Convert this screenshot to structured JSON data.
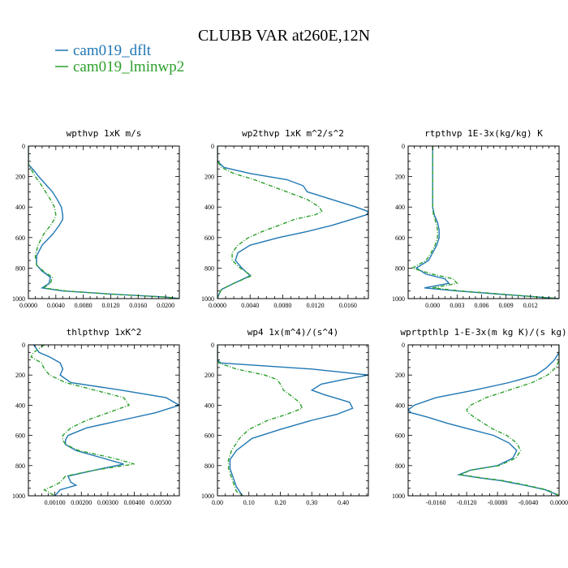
{
  "title": "CLUBB VAR at260E,12N",
  "colors": {
    "dflt": "#1f77b4",
    "lminwp2": "#2ca02c"
  },
  "legend": [
    {
      "label": "cam019_dflt",
      "color": "#1f77b4",
      "style": "solid"
    },
    {
      "label": "cam019_lminwp2",
      "color": "#2ca02c",
      "style": "dashed"
    }
  ],
  "chart_data": [
    {
      "type": "line",
      "title": "wpthvp   1xK m/s",
      "xlim": [
        0,
        0.022
      ],
      "ylim": [
        1000,
        0
      ],
      "xticks": [
        "0.0000",
        "0.0040",
        "0.0080",
        "0.0120",
        "0.0160",
        "0.0200"
      ],
      "xtick_values": [
        0,
        0.004,
        0.008,
        0.012,
        0.016,
        0.02
      ],
      "yticks": [
        "0",
        "200",
        "400",
        "600",
        "800",
        "1000"
      ],
      "ytick_values": [
        0,
        200,
        400,
        600,
        800,
        1000
      ],
      "series": [
        {
          "name": "cam019_dflt",
          "y": [
            0,
            120,
            160,
            200,
            250,
            300,
            350,
            400,
            450,
            480,
            520,
            580,
            650,
            720,
            780,
            820,
            860,
            900,
            930,
            950,
            970,
            990,
            1000
          ],
          "x": [
            0,
            0,
            0.0008,
            0.0015,
            0.0025,
            0.0035,
            0.0042,
            0.0048,
            0.005,
            0.005,
            0.0045,
            0.0035,
            0.002,
            0.0012,
            0.0012,
            0.002,
            0.0032,
            0.003,
            0.002,
            0.005,
            0.012,
            0.02,
            0.022
          ]
        },
        {
          "name": "cam019_lminwp2",
          "y": [
            0,
            120,
            160,
            200,
            250,
            300,
            350,
            400,
            450,
            480,
            520,
            580,
            650,
            720,
            780,
            820,
            860,
            900,
            930,
            950,
            970,
            990,
            1000
          ],
          "x": [
            0,
            0,
            0.0005,
            0.001,
            0.0018,
            0.0025,
            0.0032,
            0.0038,
            0.004,
            0.0038,
            0.0032,
            0.0022,
            0.0014,
            0.001,
            0.0012,
            0.0022,
            0.0035,
            0.0032,
            0.0022,
            0.0055,
            0.012,
            0.02,
            0.022
          ]
        }
      ]
    },
    {
      "type": "line",
      "title": "wp2thvp   1xK m^2/s^2",
      "xlim": [
        0,
        0.0185
      ],
      "ylim": [
        1000,
        0
      ],
      "xticks": [
        "0.0000",
        "0.0040",
        "0.0080",
        "0.0120",
        "0.0160"
      ],
      "xtick_values": [
        0,
        0.004,
        0.008,
        0.012,
        0.016
      ],
      "yticks": [
        "0",
        "200",
        "400",
        "600",
        "800",
        "1000"
      ],
      "ytick_values": [
        0,
        200,
        400,
        600,
        800,
        1000
      ],
      "series": [
        {
          "name": "cam019_dflt",
          "y": [
            0,
            100,
            140,
            180,
            220,
            260,
            300,
            350,
            400,
            430,
            450,
            480,
            520,
            560,
            600,
            650,
            700,
            750,
            800,
            850,
            900,
            940,
            970,
            1000
          ],
          "x": [
            0,
            0,
            0.0008,
            0.004,
            0.0085,
            0.0105,
            0.011,
            0.014,
            0.017,
            0.0185,
            0.0183,
            0.0165,
            0.014,
            0.011,
            0.0075,
            0.004,
            0.0025,
            0.0022,
            0.003,
            0.004,
            0.002,
            0.0005,
            0.0002,
            0
          ]
        },
        {
          "name": "cam019_lminwp2",
          "y": [
            0,
            100,
            140,
            180,
            220,
            260,
            300,
            350,
            400,
            430,
            450,
            480,
            520,
            560,
            600,
            650,
            700,
            750,
            800,
            850,
            900,
            940,
            970,
            1000
          ],
          "x": [
            0,
            0,
            0.0005,
            0.002,
            0.0045,
            0.0065,
            0.0085,
            0.011,
            0.0125,
            0.0128,
            0.012,
            0.0095,
            0.0075,
            0.0055,
            0.0038,
            0.0025,
            0.0018,
            0.0018,
            0.0028,
            0.0042,
            0.002,
            0.0005,
            0.0002,
            0
          ]
        }
      ]
    },
    {
      "type": "line",
      "title": "rtpthvp   1E-3x(kg/kg) K",
      "xlim": [
        -0.003,
        0.0155
      ],
      "ylim": [
        1000,
        0
      ],
      "xticks": [
        "0.000",
        "0.003",
        "0.006",
        "0.009",
        "0.012"
      ],
      "xtick_values": [
        0,
        0.003,
        0.006,
        0.009,
        0.012
      ],
      "yticks": [
        "0",
        "200",
        "400",
        "600",
        "800",
        "1000"
      ],
      "ytick_values": [
        0,
        200,
        400,
        600,
        800,
        1000
      ],
      "series": [
        {
          "name": "cam019_dflt",
          "y": [
            0,
            100,
            200,
            300,
            400,
            450,
            500,
            550,
            600,
            650,
            700,
            750,
            800,
            840,
            870,
            900,
            930,
            950,
            970,
            990,
            1000
          ],
          "x": [
            0,
            0,
            0,
            0,
            0,
            0.0002,
            0.0006,
            0.0008,
            0.0008,
            0.0005,
            0,
            -0.0005,
            -0.002,
            -0.0008,
            0.0015,
            0.002,
            -0.001,
            0.003,
            0.008,
            0.013,
            0.0155
          ]
        },
        {
          "name": "cam019_lminwp2",
          "y": [
            0,
            100,
            200,
            300,
            400,
            450,
            500,
            550,
            600,
            650,
            700,
            750,
            800,
            840,
            870,
            900,
            930,
            950,
            970,
            990,
            1000
          ],
          "x": [
            0,
            0,
            0,
            0,
            0,
            0.0001,
            0.0004,
            0.0006,
            0.0006,
            0.0003,
            -0.0002,
            -0.0008,
            -0.0025,
            0,
            0.0025,
            0.003,
            0,
            0.0035,
            0.0085,
            0.013,
            0.0155
          ]
        }
      ]
    },
    {
      "type": "line",
      "title": "thlpthvp   1xK^2",
      "xlim": [
        0,
        0.0057
      ],
      "ylim": [
        1000,
        0
      ],
      "xticks": [
        "0.00100",
        "0.00200",
        "0.00300",
        "0.00400",
        "0.00500"
      ],
      "xtick_values": [
        0.001,
        0.002,
        0.003,
        0.004,
        0.005
      ],
      "yticks": [
        "0",
        "200",
        "400",
        "600",
        "800",
        "1000"
      ],
      "ytick_values": [
        0,
        200,
        400,
        600,
        800,
        1000
      ],
      "series": [
        {
          "name": "cam019_dflt",
          "y": [
            0,
            50,
            80,
            120,
            160,
            200,
            250,
            300,
            350,
            400,
            450,
            500,
            550,
            600,
            630,
            660,
            700,
            750,
            790,
            830,
            870,
            910,
            930,
            960,
            1000
          ],
          "x": [
            0.0002,
            0.0004,
            0.0008,
            0.0012,
            0.0013,
            0.0012,
            0.0016,
            0.0035,
            0.0052,
            0.0057,
            0.0048,
            0.0035,
            0.0022,
            0.0015,
            0.0014,
            0.0014,
            0.0018,
            0.0028,
            0.0036,
            0.0025,
            0.0015,
            0.0016,
            0.0018,
            0.0012,
            0.001
          ]
        },
        {
          "name": "cam019_lminwp2",
          "y": [
            0,
            50,
            80,
            120,
            160,
            200,
            250,
            300,
            350,
            400,
            450,
            500,
            550,
            600,
            630,
            660,
            700,
            750,
            790,
            830,
            870,
            910,
            930,
            960,
            1000
          ],
          "x": [
            0.0006,
            0.0002,
            0.0001,
            0.0005,
            0.0006,
            0.0008,
            0.0014,
            0.0025,
            0.0036,
            0.0038,
            0.003,
            0.0022,
            0.0016,
            0.0013,
            0.0013,
            0.0014,
            0.0019,
            0.0032,
            0.004,
            0.0025,
            0.0014,
            0.0012,
            0.001,
            0.0006,
            0.001
          ]
        }
      ]
    },
    {
      "type": "line",
      "title": "wp4   1x(m^4)/(s^4)",
      "xlim": [
        0,
        0.48
      ],
      "ylim": [
        1000,
        0
      ],
      "xticks": [
        "0.00",
        "0.10",
        "0.20",
        "0.30",
        "0.40"
      ],
      "xtick_values": [
        0,
        0.1,
        0.2,
        0.3,
        0.4
      ],
      "yticks": [
        "0",
        "200",
        "400",
        "600",
        "800",
        "1000"
      ],
      "ytick_values": [
        0,
        200,
        400,
        600,
        800,
        1000
      ],
      "series": [
        {
          "name": "cam019_dflt",
          "y": [
            0,
            100,
            120,
            160,
            200,
            230,
            260,
            300,
            330,
            380,
            420,
            460,
            500,
            560,
            620,
            700,
            760,
            820,
            880,
            940,
            970,
            1000
          ],
          "x": [
            0,
            0,
            0.01,
            0.3,
            0.48,
            0.4,
            0.33,
            0.3,
            0.34,
            0.42,
            0.43,
            0.38,
            0.3,
            0.2,
            0.11,
            0.06,
            0.04,
            0.04,
            0.05,
            0.06,
            0.07,
            0.08
          ]
        },
        {
          "name": "cam019_lminwp2",
          "y": [
            0,
            100,
            120,
            160,
            200,
            230,
            260,
            300,
            330,
            380,
            420,
            460,
            500,
            560,
            620,
            700,
            760,
            820,
            880,
            940,
            970,
            1000
          ],
          "x": [
            0,
            0,
            0.005,
            0.06,
            0.15,
            0.19,
            0.2,
            0.21,
            0.23,
            0.26,
            0.27,
            0.22,
            0.16,
            0.1,
            0.07,
            0.045,
            0.035,
            0.035,
            0.045,
            0.055,
            0.06,
            0.08
          ]
        }
      ]
    },
    {
      "type": "line",
      "title": "wprtpthlp   1-E-3x(m kg K)/(s kg)",
      "xlim": [
        -0.0196,
        0
      ],
      "ylim": [
        1000,
        0
      ],
      "xticks": [
        "-0.0160",
        "-0.0120",
        "-0.0080",
        "-0.0040",
        "0.0000"
      ],
      "xtick_values": [
        -0.016,
        -0.012,
        -0.008,
        -0.004,
        0
      ],
      "yticks": [
        "0",
        "200",
        "400",
        "600",
        "800",
        "1000"
      ],
      "ytick_values": [
        0,
        200,
        400,
        600,
        800,
        1000
      ],
      "series": [
        {
          "name": "cam019_dflt",
          "y": [
            0,
            50,
            100,
            150,
            200,
            250,
            300,
            350,
            400,
            430,
            450,
            480,
            520,
            560,
            600,
            650,
            700,
            750,
            800,
            830,
            860,
            880,
            900,
            930,
            960,
            990,
            1000
          ],
          "x": [
            0,
            0,
            -0.0006,
            -0.0016,
            -0.003,
            -0.0065,
            -0.011,
            -0.016,
            -0.0188,
            -0.0196,
            -0.0192,
            -0.017,
            -0.0145,
            -0.0115,
            -0.0085,
            -0.0065,
            -0.0055,
            -0.006,
            -0.008,
            -0.0115,
            -0.013,
            -0.0105,
            -0.0075,
            -0.0045,
            -0.0018,
            -0.0004,
            0
          ]
        },
        {
          "name": "cam019_lminwp2",
          "y": [
            0,
            50,
            100,
            150,
            200,
            250,
            300,
            350,
            400,
            430,
            450,
            480,
            520,
            560,
            600,
            650,
            700,
            750,
            800,
            830,
            860,
            880,
            900,
            930,
            960,
            990,
            1000
          ],
          "x": [
            0,
            0,
            0,
            -0.0004,
            -0.0015,
            -0.0035,
            -0.0065,
            -0.0095,
            -0.0115,
            -0.012,
            -0.0118,
            -0.011,
            -0.0098,
            -0.0085,
            -0.0068,
            -0.0055,
            -0.005,
            -0.0056,
            -0.0078,
            -0.0115,
            -0.0128,
            -0.0102,
            -0.0072,
            -0.0042,
            -0.0016,
            -0.0003,
            0
          ]
        }
      ]
    }
  ]
}
